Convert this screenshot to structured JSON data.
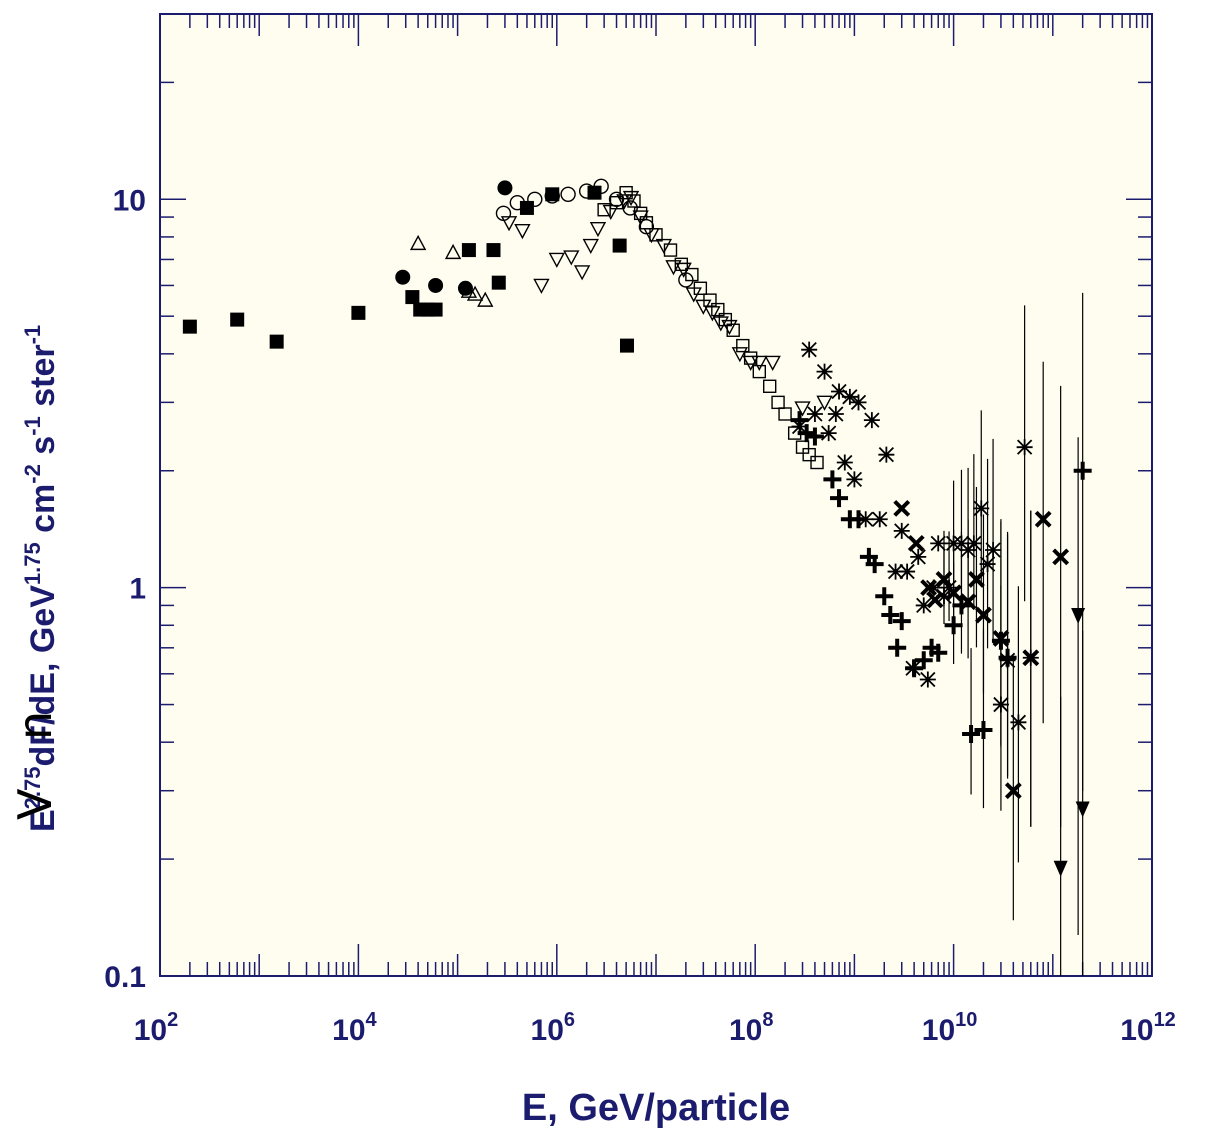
{
  "colors": {
    "plot_background": "#fffdf0",
    "axis": "#1c1c6e",
    "label": "#1c1c6e",
    "markers": "#000000"
  },
  "chart_data": {
    "type": "scatter",
    "title": "",
    "xlabel": "E, GeV/particle",
    "ylabel_parts": {
      "base": "E",
      "exp1": "2.75",
      "mid": "dF/dE, GeV",
      "exp2": "1.75",
      "mid2": " cm",
      "exp3": "-2",
      "mid3": " s",
      "exp4": "-1",
      "mid4": " ster",
      "exp5": "-1"
    },
    "x_scale": "log",
    "y_scale": "log",
    "xlim": [
      100,
      1000000000000
    ],
    "ylim": [
      0.1,
      30
    ],
    "x_tick_labels": [
      {
        "value": 100,
        "base": "10",
        "exp": "2"
      },
      {
        "value": 10000,
        "base": "10",
        "exp": "4"
      },
      {
        "value": 1000000,
        "base": "10",
        "exp": "6"
      },
      {
        "value": 100000000,
        "base": "10",
        "exp": "8"
      },
      {
        "value": 10000000000,
        "base": "10",
        "exp": "10"
      },
      {
        "value": 1000000000000,
        "base": "10",
        "exp": "12"
      }
    ],
    "y_tick_labels": [
      {
        "value": 0.1,
        "label": "0.1"
      },
      {
        "value": 1,
        "label": "1"
      },
      {
        "value": 10,
        "label": "10"
      }
    ],
    "series": [
      {
        "marker": "filled-square",
        "points": [
          [
            200,
            4.7
          ],
          [
            600,
            4.9
          ],
          [
            1500,
            4.3
          ],
          [
            10000,
            5.1
          ],
          [
            35000,
            5.6
          ],
          [
            42000,
            5.2
          ],
          [
            50000,
            5.2
          ],
          [
            60000,
            5.2
          ],
          [
            130000,
            7.4
          ],
          [
            230000,
            7.4
          ],
          [
            260000,
            6.1
          ],
          [
            500000,
            9.5
          ],
          [
            900000,
            10.3
          ],
          [
            2400000,
            10.4
          ],
          [
            4300000,
            7.6
          ],
          [
            5100000,
            4.2
          ]
        ]
      },
      {
        "marker": "filled-circle",
        "points": [
          [
            28000,
            6.3
          ],
          [
            60000,
            6.0
          ],
          [
            120000,
            5.9
          ],
          [
            300000,
            10.7
          ]
        ]
      },
      {
        "marker": "open-triangle-up",
        "points": [
          [
            40000,
            7.7
          ],
          [
            90000,
            7.3
          ],
          [
            130000,
            5.8
          ],
          [
            150000,
            5.7
          ],
          [
            190000,
            5.5
          ]
        ]
      },
      {
        "marker": "open-circle",
        "points": [
          [
            290000,
            9.2
          ],
          [
            400000,
            9.8
          ],
          [
            600000,
            10.0
          ],
          [
            900000,
            10.2
          ],
          [
            1300000,
            10.3
          ],
          [
            2000000,
            10.5
          ],
          [
            2800000,
            10.8
          ],
          [
            4000000,
            10.0
          ],
          [
            5500000,
            9.5
          ],
          [
            8000000,
            8.5
          ],
          [
            20000000,
            6.2
          ]
        ]
      },
      {
        "marker": "open-triangle-down",
        "points": [
          [
            330000,
            8.7
          ],
          [
            450000,
            8.3
          ],
          [
            700000,
            6.0
          ],
          [
            1000000,
            7.0
          ],
          [
            1400000,
            7.1
          ],
          [
            1800000,
            6.5
          ],
          [
            2200000,
            7.6
          ],
          [
            2600000,
            8.4
          ],
          [
            3500000,
            9.3
          ],
          [
            4800000,
            9.9
          ],
          [
            5600000,
            10.1
          ],
          [
            7000000,
            9.0
          ],
          [
            9000000,
            8.1
          ],
          [
            12000000,
            7.6
          ],
          [
            15000000,
            6.7
          ],
          [
            19000000,
            6.6
          ],
          [
            24000000,
            5.7
          ],
          [
            30000000,
            5.3
          ],
          [
            37000000,
            5.1
          ],
          [
            45000000,
            4.8
          ],
          [
            55000000,
            4.7
          ],
          [
            70000000,
            4.0
          ],
          [
            90000000,
            3.8
          ],
          [
            110000000,
            3.8
          ],
          [
            150000000,
            3.8
          ],
          [
            300000000,
            2.9
          ],
          [
            500000000,
            3.0
          ]
        ]
      },
      {
        "marker": "open-square",
        "points": [
          [
            3000000,
            9.4
          ],
          [
            4000000,
            9.8
          ],
          [
            5000000,
            10.4
          ],
          [
            6000000,
            9.9
          ],
          [
            7000000,
            9.2
          ],
          [
            8000000,
            8.7
          ],
          [
            10000000,
            8.1
          ],
          [
            14000000,
            7.4
          ],
          [
            18000000,
            6.8
          ],
          [
            23000000,
            6.4
          ],
          [
            28000000,
            5.9
          ],
          [
            35000000,
            5.5
          ],
          [
            42000000,
            5.2
          ],
          [
            50000000,
            4.9
          ],
          [
            60000000,
            4.6
          ],
          [
            75000000,
            4.2
          ],
          [
            90000000,
            3.9
          ],
          [
            110000000,
            3.6
          ],
          [
            140000000,
            3.3
          ],
          [
            170000000,
            3.0
          ],
          [
            200000000,
            2.8
          ],
          [
            250000000,
            2.5
          ],
          [
            300000000,
            2.3
          ],
          [
            350000000,
            2.2
          ],
          [
            420000000,
            2.1
          ]
        ]
      },
      {
        "marker": "asterisk",
        "points": [
          [
            280000000,
            2.6
          ],
          [
            350000000,
            4.1
          ],
          [
            400000000,
            2.8
          ],
          [
            500000000,
            3.6
          ],
          [
            550000000,
            2.5
          ],
          [
            650000000,
            2.8
          ],
          [
            700000000,
            3.2
          ],
          [
            800000000,
            2.1
          ],
          [
            900000000,
            3.1
          ],
          [
            1000000000,
            1.9
          ],
          [
            1100000000,
            3.0
          ],
          [
            1300000000,
            1.5
          ],
          [
            1500000000,
            2.7
          ],
          [
            1800000000,
            1.5
          ],
          [
            2100000000,
            2.2
          ],
          [
            2600000000,
            1.1
          ],
          [
            3000000000,
            1.4
          ],
          [
            3400000000,
            1.1
          ],
          [
            3900000000,
            0.62
          ],
          [
            4400000000,
            1.2
          ],
          [
            5000000000,
            0.9
          ],
          [
            5500000000,
            0.58
          ],
          [
            6300000000,
            1.0
          ],
          [
            7000000000,
            1.3
          ],
          [
            8000000000,
            0.95
          ],
          [
            9000000000,
            1.0
          ],
          [
            10000000000,
            1.3
          ],
          [
            12000000000,
            1.3
          ],
          [
            14000000000,
            1.25
          ],
          [
            16000000000,
            1.3
          ],
          [
            19000000000,
            1.6
          ],
          [
            22000000000,
            1.15
          ],
          [
            25000000000,
            1.25
          ],
          [
            30000000000,
            0.5
          ],
          [
            35000000000,
            0.65
          ],
          [
            45000000000,
            0.45
          ],
          [
            52000000000,
            2.3
          ],
          [
            60000000000,
            0.66
          ]
        ]
      },
      {
        "marker": "cross",
        "points": [
          [
            3000000000,
            1.6
          ],
          [
            4200000000,
            1.3
          ],
          [
            5600000000,
            1.0
          ],
          [
            6500000000,
            0.93
          ],
          [
            8000000000,
            1.05
          ],
          [
            10000000000,
            0.97
          ],
          [
            14000000000,
            0.92
          ],
          [
            17000000000,
            1.05
          ],
          [
            20000000000,
            0.85
          ],
          [
            30000000000,
            0.74
          ],
          [
            40000000000,
            0.3
          ],
          [
            60000000000,
            0.66
          ],
          [
            80000000000,
            1.5
          ],
          [
            120000000000,
            1.2
          ]
        ]
      },
      {
        "marker": "plus",
        "points": [
          [
            280000000,
            2.7
          ],
          [
            330000000,
            2.5
          ],
          [
            400000000,
            2.45
          ],
          [
            600000000,
            1.9
          ],
          [
            700000000,
            1.7
          ],
          [
            900000000,
            1.5
          ],
          [
            1100000000,
            1.5
          ],
          [
            1400000000,
            1.2
          ],
          [
            1600000000,
            1.15
          ],
          [
            2000000000,
            0.95
          ],
          [
            2300000000,
            0.85
          ],
          [
            2700000000,
            0.7
          ],
          [
            3000000000,
            0.82
          ],
          [
            4000000000,
            0.62
          ],
          [
            5000000000,
            0.65
          ],
          [
            6000000000,
            0.7
          ],
          [
            7000000000,
            0.68
          ],
          [
            10000000000,
            0.8
          ],
          [
            12000000000,
            0.9
          ],
          [
            15000000000,
            0.42
          ],
          [
            20000000000,
            0.43
          ],
          [
            30000000000,
            0.73
          ],
          [
            35000000000,
            0.66
          ],
          [
            200000000000,
            2.0
          ]
        ]
      },
      {
        "marker": "filled-triangle-down",
        "points": [
          [
            120000000000,
            0.19
          ],
          [
            180000000000,
            0.85
          ],
          [
            200000000000,
            0.27
          ]
        ]
      }
    ]
  },
  "overlay_fragment": {
    "line1": "n",
    "line2": "V"
  }
}
